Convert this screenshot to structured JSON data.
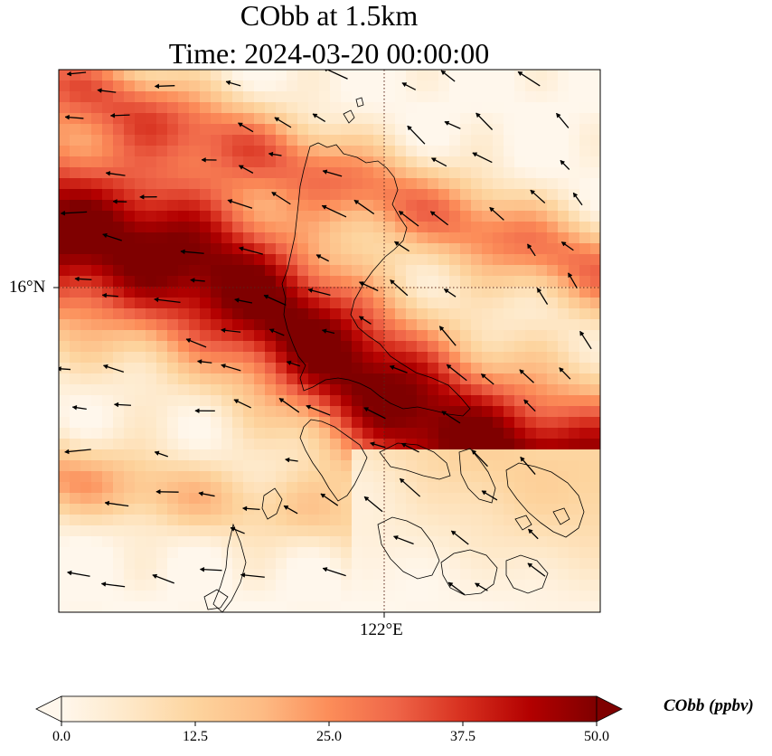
{
  "title_line1": "CObb at 1.5km",
  "title_line2": "Time: 2024-03-20 00:00:00",
  "lat_tick": "16°N",
  "lon_tick": "122°E",
  "colorbar": {
    "label": "CObb (ppbv)",
    "ticks": [
      "0.0",
      "12.5",
      "25.0",
      "37.5",
      "50.0"
    ],
    "min": 0,
    "max": 50,
    "extend": "both",
    "colormap": [
      "#fff7ec",
      "#fee8c8",
      "#fdd49e",
      "#fdbb84",
      "#fc8d59",
      "#ef6548",
      "#d7301f",
      "#b30000",
      "#7f0000"
    ]
  },
  "map": {
    "field": "CObb",
    "units": "ppbv",
    "level": "1.5km",
    "gridline_color": "#7a3a2a",
    "coastline_color": "#000000",
    "wind_vector_color": "#000000"
  }
}
